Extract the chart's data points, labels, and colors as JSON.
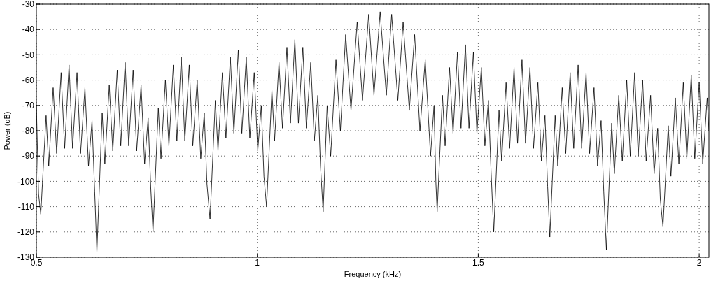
{
  "chart_data": {
    "type": "line",
    "xlabel": "Frequency (kHz)",
    "ylabel": "Power (dB)",
    "xlim": [
      0.5,
      2.022
    ],
    "xticks": [
      0.5,
      1,
      1.5,
      2
    ],
    "ylim": [
      -130,
      -30
    ],
    "yticks": [
      -130,
      -120,
      -110,
      -100,
      -90,
      -80,
      -70,
      -60,
      -50,
      -40,
      -30
    ],
    "grid": true,
    "line_style": "solid",
    "marker": "none",
    "series": [
      {
        "color": "#000000",
        "x": [
          0.5,
          0.505,
          0.51,
          0.522,
          0.528,
          0.538,
          0.546,
          0.556,
          0.564,
          0.574,
          0.582,
          0.592,
          0.6,
          0.61,
          0.618,
          0.626,
          0.632,
          0.637,
          0.649,
          0.655,
          0.665,
          0.673,
          0.683,
          0.691,
          0.701,
          0.709,
          0.719,
          0.727,
          0.737,
          0.745,
          0.753,
          0.759,
          0.764,
          0.776,
          0.782,
          0.792,
          0.8,
          0.81,
          0.818,
          0.828,
          0.836,
          0.846,
          0.854,
          0.864,
          0.872,
          0.88,
          0.886,
          0.893,
          0.905,
          0.911,
          0.921,
          0.929,
          0.939,
          0.947,
          0.957,
          0.965,
          0.975,
          0.983,
          0.993,
          1.001,
          1.009,
          1.015,
          1.021,
          1.033,
          1.039,
          1.049,
          1.057,
          1.067,
          1.075,
          1.085,
          1.093,
          1.103,
          1.111,
          1.121,
          1.129,
          1.137,
          1.143,
          1.149,
          1.158,
          1.166,
          1.178,
          1.188,
          1.2,
          1.212,
          1.226,
          1.238,
          1.252,
          1.264,
          1.278,
          1.292,
          1.304,
          1.318,
          1.33,
          1.344,
          1.356,
          1.368,
          1.38,
          1.392,
          1.4,
          1.404,
          1.407,
          1.419,
          1.425,
          1.435,
          1.443,
          1.453,
          1.461,
          1.471,
          1.479,
          1.489,
          1.497,
          1.507,
          1.515,
          1.523,
          1.529,
          1.535,
          1.547,
          1.553,
          1.563,
          1.571,
          1.581,
          1.589,
          1.599,
          1.607,
          1.617,
          1.625,
          1.635,
          1.643,
          1.651,
          1.657,
          1.662,
          1.674,
          1.68,
          1.69,
          1.698,
          1.708,
          1.716,
          1.726,
          1.734,
          1.744,
          1.752,
          1.762,
          1.77,
          1.778,
          1.784,
          1.79,
          1.802,
          1.808,
          1.818,
          1.826,
          1.836,
          1.844,
          1.854,
          1.862,
          1.872,
          1.88,
          1.89,
          1.898,
          1.906,
          1.912,
          1.918,
          1.93,
          1.936,
          1.946,
          1.954,
          1.964,
          1.972,
          1.982,
          1.99,
          2.0,
          2.008,
          2.018,
          2.022
        ],
        "values": [
          -70,
          -105,
          -113,
          -74,
          -94,
          -63,
          -89,
          -57,
          -87,
          -54,
          -87,
          -57,
          -89,
          -63,
          -94,
          -76,
          -104,
          -128,
          -73,
          -93,
          -62,
          -88,
          -56,
          -86,
          -53,
          -86,
          -56,
          -88,
          -62,
          -93,
          -75,
          -103,
          -120,
          -71,
          -91,
          -60,
          -86,
          -54,
          -84,
          -51,
          -84,
          -54,
          -86,
          -60,
          -91,
          -73,
          -101,
          -115,
          -68,
          -88,
          -57,
          -83,
          -51,
          -81,
          -48,
          -81,
          -51,
          -83,
          -57,
          -88,
          -70,
          -98,
          -110,
          -64,
          -84,
          -53,
          -79,
          -47,
          -77,
          -44,
          -77,
          -47,
          -79,
          -53,
          -84,
          -66,
          -94,
          -112,
          -70,
          -90,
          -52,
          -80,
          -42,
          -72,
          -37,
          -68,
          -34,
          -66,
          -33,
          -66,
          -34,
          -68,
          -37,
          -72,
          -42,
          -80,
          -52,
          -90,
          -70,
          -100,
          -112,
          -66,
          -86,
          -55,
          -81,
          -49,
          -79,
          -46,
          -79,
          -49,
          -81,
          -55,
          -86,
          -68,
          -96,
          -120,
          -72,
          -92,
          -61,
          -87,
          -55,
          -85,
          -52,
          -85,
          -55,
          -87,
          -61,
          -92,
          -74,
          -102,
          -122,
          -74,
          -94,
          -63,
          -89,
          -57,
          -87,
          -54,
          -87,
          -57,
          -89,
          -63,
          -94,
          -76,
          -104,
          -127,
          -77,
          -97,
          -66,
          -92,
          -60,
          -90,
          -57,
          -90,
          -60,
          -92,
          -66,
          -97,
          -79,
          -107,
          -118,
          -78,
          -98,
          -67,
          -93,
          -61,
          -91,
          -58,
          -91,
          -61,
          -93,
          -67,
          -80
        ]
      }
    ]
  }
}
